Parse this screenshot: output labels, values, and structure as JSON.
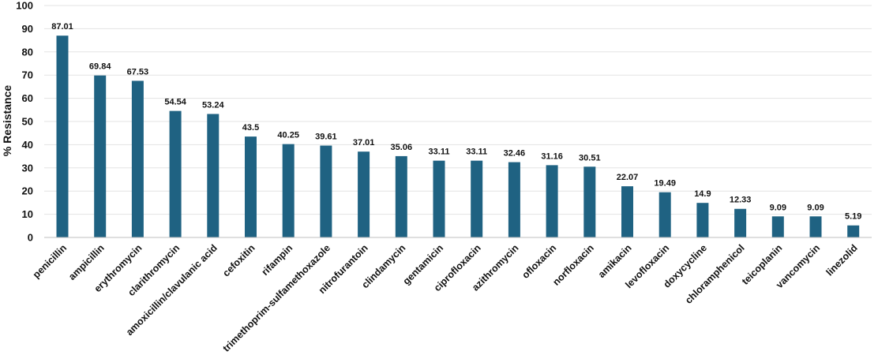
{
  "chart_data": {
    "type": "bar",
    "title": "",
    "xlabel": "",
    "ylabel": "% Resistance",
    "ylim": [
      0,
      100
    ],
    "yticks": [
      0,
      10,
      20,
      30,
      40,
      50,
      60,
      70,
      80,
      90,
      100
    ],
    "grid": true,
    "legend": "none",
    "bar_color": "#1F6282",
    "categories": [
      "penicillin",
      "ampicillin",
      "erythromycin",
      "clarithromycin",
      "amoxicillin/clavulanic acid",
      "cefoxitin",
      "rifampin",
      "trimethoprim-sulfamethoxazole",
      "nitrofurantoin",
      "clindamycin",
      "gentamicin",
      "ciprofloxacin",
      "azithromycin",
      "ofloxacin",
      "norfloxacin",
      "amikacin",
      "levofloxacin",
      "doxycycline",
      "chloramphenicol",
      "teicoplanin",
      "vancomycin",
      "linezolid"
    ],
    "values": [
      87.01,
      69.84,
      67.53,
      54.54,
      53.24,
      43.5,
      40.25,
      39.61,
      37.01,
      35.06,
      33.11,
      33.11,
      32.46,
      31.16,
      30.51,
      22.07,
      19.49,
      14.9,
      12.33,
      9.09,
      9.09,
      5.19
    ],
    "value_labels": [
      "87.01",
      "69.84",
      "67.53",
      "54.54",
      "53.24",
      "43.5",
      "40.25",
      "39.61",
      "37.01",
      "35.06",
      "33.11",
      "33.11",
      "32.46",
      "31.16",
      "30.51",
      "22.07",
      "19.49",
      "14.9",
      "12.33",
      "9.09",
      "9.09",
      "5.19"
    ]
  }
}
